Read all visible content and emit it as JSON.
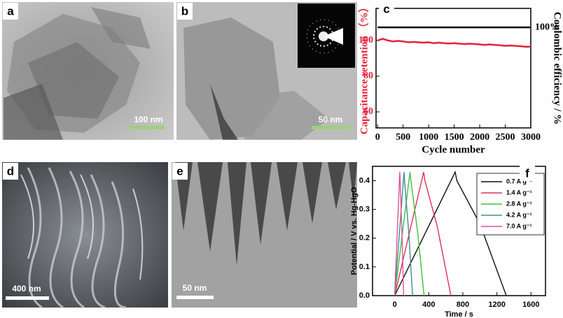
{
  "panels": [
    {
      "label": "a",
      "scale_bar": "100 nm"
    },
    {
      "label": "b",
      "scale_bar": "50 nm"
    },
    {
      "label": "d",
      "scale_bar": "400 nm"
    },
    {
      "label": "e",
      "scale_bar": "50 nm"
    }
  ],
  "chart_data": [
    {
      "type": "line",
      "label": "c",
      "xlabel": "Cycle number",
      "ylabel": "Capacitance retention （%）",
      "y2label": "Coulombic efficiency / %",
      "x": [
        0,
        100,
        200,
        300,
        400,
        500,
        600,
        700,
        800,
        900,
        1000,
        1100,
        1200,
        1300,
        1400,
        1500,
        1600,
        1700,
        1800,
        1900,
        2000,
        2100,
        2200,
        2300,
        2400,
        2500,
        2600,
        2700,
        2800,
        2900,
        3000
      ],
      "xlim": [
        -30,
        3000
      ],
      "xticks": [
        0,
        500,
        1000,
        1500,
        2000,
        2500,
        3000
      ],
      "ylim": [
        51,
        118
      ],
      "yticks": [
        60,
        80,
        100
      ],
      "y2lim": [
        40,
        111.3
      ],
      "y2ticks": [
        {
          "value": 100,
          "label": "100%"
        }
      ],
      "series": [
        {
          "color": "#e8203c",
          "values": [
            100,
            101,
            100,
            99.5,
            99.8,
            99.5,
            99,
            99.2,
            99,
            98.8,
            99,
            98.5,
            98.8,
            98.5,
            98.3,
            98.5,
            98.2,
            98,
            98.2,
            98,
            97.8,
            97.5,
            97.8,
            97.5,
            97.3,
            97,
            97.2,
            97,
            96.8,
            96.5,
            96.5
          ]
        },
        {
          "color": "#111111",
          "axis": "y2",
          "values": [
            100,
            100,
            100,
            100,
            100,
            100,
            100,
            100,
            100,
            100,
            100,
            100,
            100,
            100,
            100,
            100,
            100,
            100,
            100,
            100,
            100,
            100,
            100,
            100,
            100,
            100,
            100,
            100,
            100,
            100,
            100
          ]
        }
      ]
    },
    {
      "type": "line",
      "label": "f",
      "xlabel": "Time / s",
      "ylabel": "Potential / V vs. Hg-HgO",
      "xlim": [
        -260,
        1770
      ],
      "xticks": [
        0,
        400,
        800,
        1200,
        1600
      ],
      "ylim": [
        0,
        0.45
      ],
      "yticks": [
        {
          "value": 0,
          "label": "0.0"
        },
        0.1,
        0.2,
        0.3,
        0.4
      ],
      "legend": "upper right",
      "series": [
        {
          "name": "0.7 A g⁻¹",
          "color": "#111111",
          "x": [
            0,
            710,
            730,
            1000,
            1310
          ],
          "values": [
            0,
            0.43,
            0.4,
            0.25,
            0
          ]
        },
        {
          "name": "1.4 A g⁻¹",
          "color": "#e0305a",
          "x": [
            0,
            340,
            355,
            500,
            660
          ],
          "values": [
            0,
            0.43,
            0.4,
            0.24,
            0
          ]
        },
        {
          "name": "2.8 A g⁻¹",
          "color": "#3fc040",
          "x": [
            0,
            180,
            190,
            270,
            345
          ],
          "values": [
            0,
            0.43,
            0.4,
            0.22,
            0
          ]
        },
        {
          "name": "4.2 A g⁻¹",
          "color": "#3f8f8a",
          "x": [
            0,
            110,
            116,
            165,
            210
          ],
          "values": [
            0,
            0.43,
            0.4,
            0.22,
            0
          ]
        },
        {
          "name": "7.0 A g⁻¹",
          "color": "#e0509a",
          "x": [
            0,
            60,
            64,
            85,
            105
          ],
          "values": [
            0,
            0.43,
            0.4,
            0.22,
            0
          ]
        }
      ]
    }
  ]
}
